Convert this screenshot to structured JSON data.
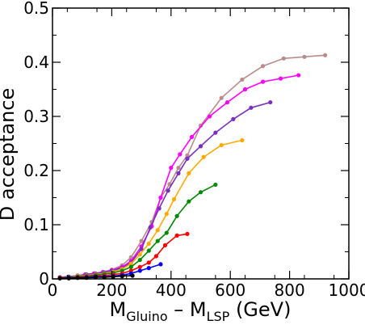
{
  "chart_data": {
    "type": "line",
    "title": "",
    "ylabel": "D  acceptance",
    "xlabel_main": "M",
    "xlabel_sub1": "Gluino",
    "xlabel_mid": " – M",
    "xlabel_sub2": "LSP",
    "xlabel_tail": "  (GeV)",
    "xlim": [
      0,
      1000
    ],
    "ylim": [
      0,
      0.5
    ],
    "x_ticks": [
      0,
      200,
      400,
      600,
      800,
      1000
    ],
    "x_tick_labels": [
      "0",
      "200",
      "400",
      "600",
      "800",
      "1000"
    ],
    "y_ticks": [
      0,
      0.1,
      0.2,
      0.3,
      0.4,
      0.5
    ],
    "y_tick_labels": [
      "0",
      "0.1",
      "0.2",
      "0.3",
      "0.4",
      "0.5"
    ],
    "grid": false,
    "legend": "none",
    "series": [
      {
        "color": "#b88c8c",
        "x": [
          25,
          55,
          85,
          110,
          140,
          170,
          200,
          235,
          265,
          300,
          335,
          365,
          395,
          425,
          455,
          500,
          570,
          640,
          710,
          780,
          850,
          920
        ],
        "y": [
          0.003,
          0.004,
          0.006,
          0.008,
          0.01,
          0.013,
          0.017,
          0.025,
          0.04,
          0.07,
          0.105,
          0.15,
          0.175,
          0.205,
          0.228,
          0.283,
          0.334,
          0.368,
          0.393,
          0.407,
          0.41,
          0.413
        ]
      },
      {
        "color": "#ff00ff",
        "x": [
          25,
          55,
          85,
          110,
          140,
          170,
          200,
          235,
          265,
          300,
          335,
          365,
          400,
          430,
          470,
          530,
          590,
          650,
          710,
          770,
          830
        ],
        "y": [
          0.003,
          0.004,
          0.006,
          0.008,
          0.01,
          0.012,
          0.016,
          0.022,
          0.033,
          0.06,
          0.097,
          0.15,
          0.205,
          0.23,
          0.262,
          0.3,
          0.326,
          0.35,
          0.364,
          0.37,
          0.376
        ]
      },
      {
        "color": "#7b2fbe",
        "x": [
          25,
          55,
          85,
          115,
          145,
          175,
          200,
          235,
          265,
          300,
          330,
          360,
          390,
          425,
          455,
          500,
          550,
          610,
          670,
          735
        ],
        "y": [
          0.003,
          0.004,
          0.006,
          0.008,
          0.01,
          0.012,
          0.015,
          0.02,
          0.03,
          0.055,
          0.095,
          0.13,
          0.163,
          0.195,
          0.222,
          0.245,
          0.27,
          0.295,
          0.316,
          0.326
        ]
      },
      {
        "color": "#ffaa00",
        "x": [
          25,
          55,
          85,
          115,
          145,
          175,
          205,
          235,
          265,
          295,
          325,
          355,
          385,
          410,
          460,
          510,
          570,
          640
        ],
        "y": [
          0.002,
          0.003,
          0.005,
          0.006,
          0.008,
          0.01,
          0.013,
          0.018,
          0.028,
          0.045,
          0.065,
          0.09,
          0.12,
          0.147,
          0.195,
          0.225,
          0.247,
          0.256
        ]
      },
      {
        "color": "#008800",
        "x": [
          25,
          55,
          85,
          115,
          145,
          175,
          205,
          235,
          265,
          295,
          325,
          355,
          385,
          420,
          460,
          500,
          550
        ],
        "y": [
          0.002,
          0.003,
          0.004,
          0.005,
          0.007,
          0.009,
          0.011,
          0.015,
          0.022,
          0.035,
          0.052,
          0.07,
          0.085,
          0.116,
          0.143,
          0.16,
          0.174
        ]
      },
      {
        "color": "#ff0000",
        "x": [
          25,
          55,
          85,
          115,
          145,
          175,
          205,
          235,
          265,
          295,
          325,
          350,
          380,
          420,
          455
        ],
        "y": [
          0.002,
          0.002,
          0.003,
          0.004,
          0.005,
          0.006,
          0.008,
          0.01,
          0.015,
          0.022,
          0.03,
          0.042,
          0.062,
          0.08,
          0.083
        ]
      },
      {
        "color": "#0000ff",
        "x": [
          25,
          55,
          85,
          115,
          145,
          175,
          205,
          235,
          265,
          295,
          325,
          365
        ],
        "y": [
          0.001,
          0.002,
          0.002,
          0.003,
          0.004,
          0.004,
          0.005,
          0.007,
          0.01,
          0.015,
          0.02,
          0.027
        ]
      },
      {
        "color": "#000000",
        "x": [
          25,
          55,
          85,
          115,
          145,
          175,
          205,
          235,
          270
        ],
        "y": [
          0.001,
          0.001,
          0.002,
          0.002,
          0.003,
          0.003,
          0.004,
          0.005,
          0.006
        ]
      }
    ]
  }
}
